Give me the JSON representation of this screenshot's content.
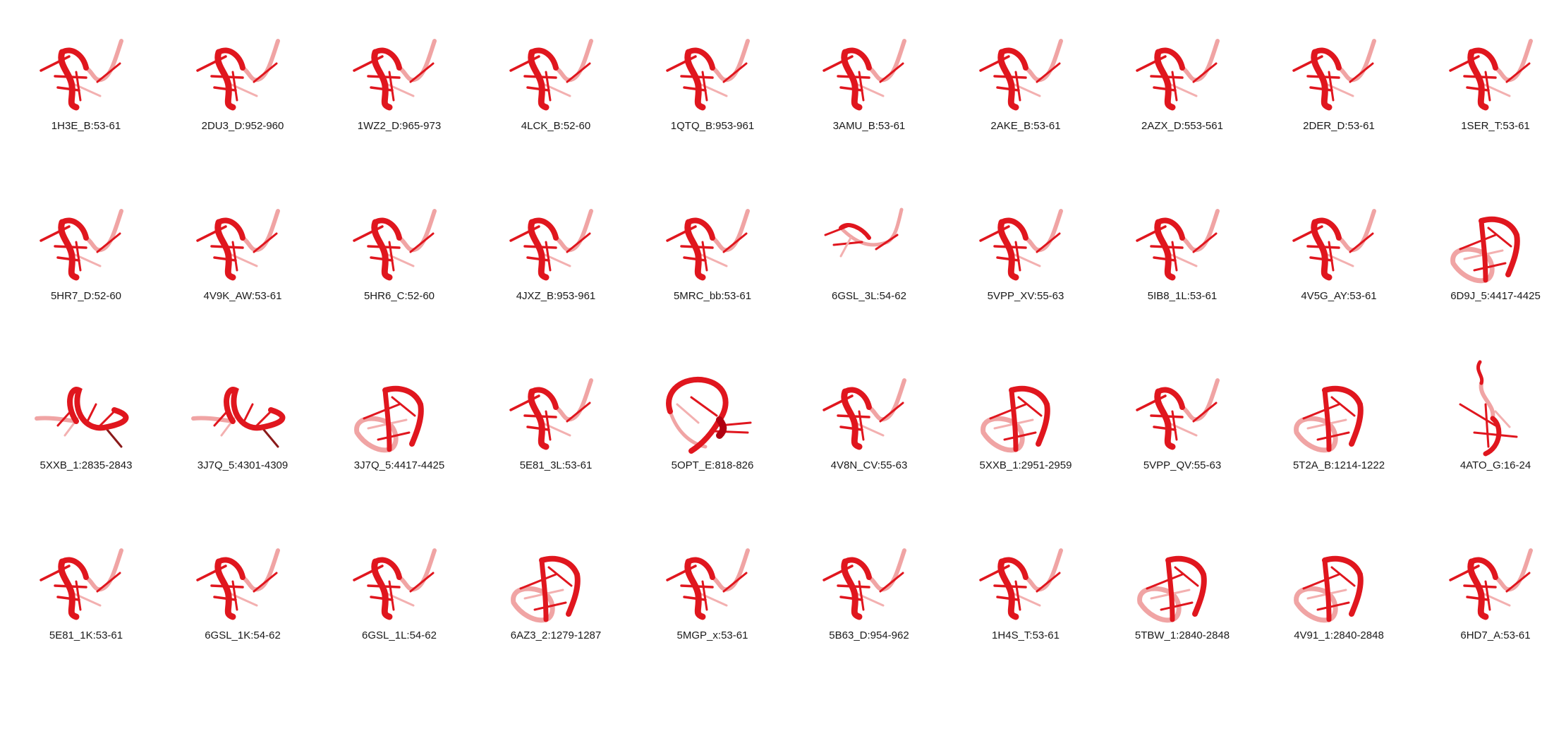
{
  "accent_color": "#e0161e",
  "rows": [
    [
      {
        "label": "1H3E_B:53-61",
        "shape": "hairpin"
      },
      {
        "label": "2DU3_D:952-960",
        "shape": "hairpin"
      },
      {
        "label": "1WZ2_D:965-973",
        "shape": "hairpin"
      },
      {
        "label": "4LCK_B:52-60",
        "shape": "hairpin"
      },
      {
        "label": "1QTQ_B:953-961",
        "shape": "hairpin"
      },
      {
        "label": "3AMU_B:53-61",
        "shape": "hairpin"
      },
      {
        "label": "2AKE_B:53-61",
        "shape": "hairpin"
      },
      {
        "label": "2AZX_D:553-561",
        "shape": "hairpin"
      },
      {
        "label": "2DER_D:53-61",
        "shape": "hairpin"
      },
      {
        "label": "1SER_T:53-61",
        "shape": "hairpin"
      }
    ],
    [
      {
        "label": "5HR7_D:52-60",
        "shape": "hairpin"
      },
      {
        "label": "4V9K_AW:53-61",
        "shape": "hairpin"
      },
      {
        "label": "5HR6_C:52-60",
        "shape": "hairpin"
      },
      {
        "label": "4JXZ_B:953-961",
        "shape": "hairpin"
      },
      {
        "label": "5MRC_bb:53-61",
        "shape": "hairpin"
      },
      {
        "label": "6GSL_3L:54-62",
        "shape": "open"
      },
      {
        "label": "5VPP_XV:55-63",
        "shape": "hairpin"
      },
      {
        "label": "5IB8_1L:53-61",
        "shape": "hairpin"
      },
      {
        "label": "4V5G_AY:53-61",
        "shape": "hairpin"
      },
      {
        "label": "6D9J_5:4417-4425",
        "shape": "box"
      }
    ],
    [
      {
        "label": "5XXB_1:2835-2843",
        "shape": "flat"
      },
      {
        "label": "3J7Q_5:4301-4309",
        "shape": "flat"
      },
      {
        "label": "3J7Q_5:4417-4425",
        "shape": "box"
      },
      {
        "label": "5E81_3L:53-61",
        "shape": "hairpin"
      },
      {
        "label": "5OPT_E:818-826",
        "shape": "loop"
      },
      {
        "label": "4V8N_CV:55-63",
        "shape": "hairpin"
      },
      {
        "label": "5XXB_1:2951-2959",
        "shape": "box"
      },
      {
        "label": "5VPP_QV:55-63",
        "shape": "hairpin"
      },
      {
        "label": "5T2A_B:1214-1222",
        "shape": "box"
      },
      {
        "label": "4ATO_G:16-24",
        "shape": "tall"
      }
    ],
    [
      {
        "label": "5E81_1K:53-61",
        "shape": "hairpin"
      },
      {
        "label": "6GSL_1K:54-62",
        "shape": "hairpin"
      },
      {
        "label": "6GSL_1L:54-62",
        "shape": "hairpin"
      },
      {
        "label": "6AZ3_2:1279-1287",
        "shape": "box"
      },
      {
        "label": "5MGP_x:53-61",
        "shape": "hairpin"
      },
      {
        "label": "5B63_D:954-962",
        "shape": "hairpin"
      },
      {
        "label": "1H4S_T:53-61",
        "shape": "hairpin"
      },
      {
        "label": "5TBW_1:2840-2848",
        "shape": "box"
      },
      {
        "label": "4V91_1:2840-2848",
        "shape": "box"
      },
      {
        "label": "6HD7_A:53-61",
        "shape": "hairpin"
      }
    ]
  ]
}
